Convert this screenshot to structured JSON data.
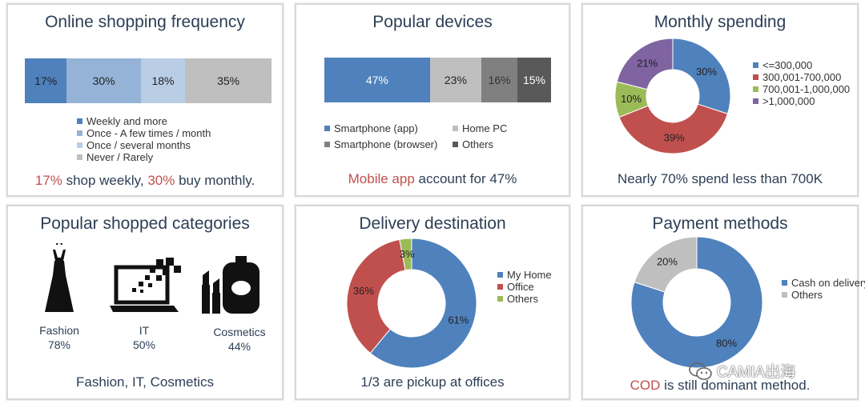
{
  "colors": {
    "blue": "#4f81bd",
    "light_blue": "#95b3d7",
    "pale_blue": "#b9cde5",
    "grey": "#bfbfbf",
    "mid_grey": "#808080",
    "dark_grey": "#595959",
    "red": "#c0504d",
    "green": "#9bbb59",
    "purple": "#8064a2",
    "title": "#2d3e55"
  },
  "panels": {
    "frequency": {
      "title": "Online shopping frequency",
      "caption": {
        "p1": "17%",
        "p2": " shop weekly, ",
        "p3": "30%",
        "p4": " buy monthly."
      }
    },
    "devices": {
      "title": "Popular devices",
      "caption": {
        "p1": "Mobile app",
        "p2": " account for 47%"
      }
    },
    "spending": {
      "title": "Monthly spending",
      "caption": "Nearly 70% spend less than 700K"
    },
    "categories": {
      "title": "Popular shopped categories",
      "items": [
        {
          "name": "Fashion",
          "value": "78%",
          "icon": "dress-icon"
        },
        {
          "name": "IT",
          "value": "50%",
          "icon": "laptop-icon"
        },
        {
          "name": "Cosmetics",
          "value": "44%",
          "icon": "cosmetics-icon"
        }
      ],
      "caption": "Fashion, IT, Cosmetics"
    },
    "delivery": {
      "title": "Delivery destination",
      "caption": "1/3 are pickup at offices"
    },
    "payment": {
      "title": "Payment methods",
      "caption": {
        "p1": "COD",
        "p2": " is still dominant method."
      }
    }
  },
  "watermark": {
    "text": "CAMIA出海",
    "icon": "wechat-icon"
  },
  "chart_data": [
    {
      "id": "frequency",
      "type": "bar",
      "orientation": "horizontal-stacked-100",
      "series": [
        {
          "name": "Weekly and more",
          "value": 17,
          "label": "17%",
          "color": "#4f81bd"
        },
        {
          "name": "Once - A few times / month",
          "value": 30,
          "label": "30%",
          "color": "#95b3d7"
        },
        {
          "name": "Once / several months",
          "value": 18,
          "label": "18%",
          "color": "#b9cde5"
        },
        {
          "name": "Never / Rarely",
          "value": 35,
          "label": "35%",
          "color": "#bfbfbf"
        }
      ],
      "legend": "bottom"
    },
    {
      "id": "devices",
      "type": "bar",
      "orientation": "horizontal-stacked-100",
      "series": [
        {
          "name": "Smartphone (app)",
          "value": 47,
          "label": "47%",
          "color": "#4f81bd"
        },
        {
          "name": "Home PC",
          "value": 23,
          "label": "23%",
          "color": "#bfbfbf"
        },
        {
          "name": "Smartphone (browser)",
          "value": 16,
          "label": "16%",
          "color": "#808080"
        },
        {
          "name": "Others",
          "value": 15,
          "label": "15%",
          "color": "#595959"
        }
      ],
      "legend": "bottom"
    },
    {
      "id": "spending",
      "type": "pie",
      "donut": true,
      "slices": [
        {
          "name": "<=300,000",
          "value": 30,
          "label": "30%",
          "color": "#4f81bd"
        },
        {
          "name": "300,001-700,000",
          "value": 39,
          "label": "39%",
          "color": "#c0504d"
        },
        {
          "name": "700,001-1,000,000",
          "value": 10,
          "label": "10%",
          "color": "#9bbb59"
        },
        {
          "name": ">1,000,000",
          "value": 21,
          "label": "21%",
          "color": "#8064a2"
        }
      ],
      "legend": "right"
    },
    {
      "id": "delivery",
      "type": "pie",
      "donut": true,
      "slices": [
        {
          "name": "My Home",
          "value": 61,
          "label": "61%",
          "color": "#4f81bd"
        },
        {
          "name": "Office",
          "value": 36,
          "label": "36%",
          "color": "#c0504d"
        },
        {
          "name": "Others",
          "value": 3,
          "label": "3%",
          "color": "#9bbb59"
        }
      ],
      "legend": "right"
    },
    {
      "id": "payment",
      "type": "pie",
      "donut": true,
      "slices": [
        {
          "name": "Cash on delivery",
          "value": 80,
          "label": "80%",
          "color": "#4f81bd"
        },
        {
          "name": "Others",
          "value": 20,
          "label": "20%",
          "color": "#bfbfbf"
        }
      ],
      "legend": "right"
    }
  ]
}
